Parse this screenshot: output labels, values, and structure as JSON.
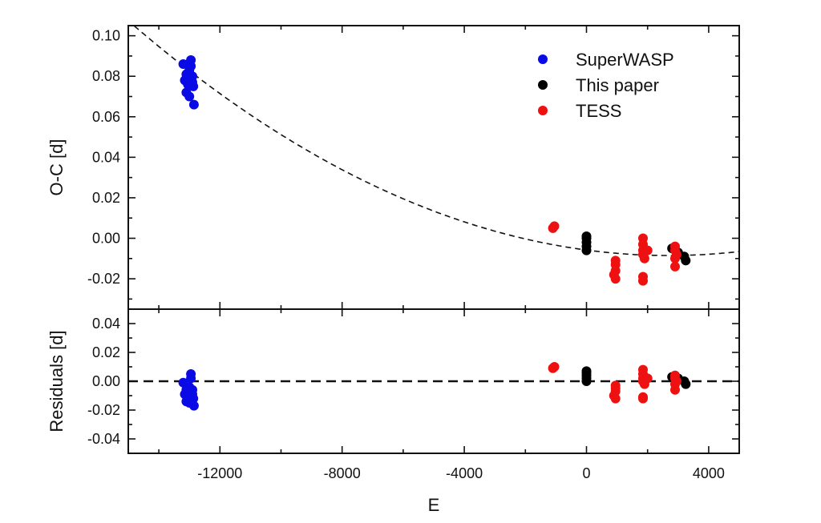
{
  "chart_data": {
    "type": "scatter",
    "xlabel": "E",
    "panels": [
      {
        "id": "top",
        "ylabel": "O-C [d]",
        "ylim": [
          -0.035,
          0.105
        ],
        "yticks": [
          -0.02,
          0.0,
          0.02,
          0.04,
          0.06,
          0.08,
          0.1
        ],
        "ytick_labels": [
          "-0.02",
          "0.00",
          "0.02",
          "0.04",
          "0.06",
          "0.08",
          "0.10"
        ]
      },
      {
        "id": "bottom",
        "ylabel": "Residuals [d]",
        "ylim": [
          -0.05,
          0.05
        ],
        "yticks": [
          -0.04,
          -0.02,
          0.0,
          0.02,
          0.04
        ],
        "ytick_labels": [
          "-0.04",
          "-0.02",
          "0.00",
          "0.02",
          "0.04"
        ]
      }
    ],
    "xlim": [
      -15000,
      5000
    ],
    "xticks": [
      -12000,
      -8000,
      -4000,
      0,
      4000
    ],
    "xtick_labels": [
      "-12000",
      "-8000",
      "-4000",
      "0",
      "4000"
    ],
    "legend": {
      "placement": "top-right"
    },
    "fit": {
      "type": "quadratic",
      "vertex_E": 2700,
      "vertex_OC": -0.0085,
      "curvature": 3.7e-10,
      "style": "dashed"
    },
    "series": [
      {
        "name": "SuperWASP",
        "color": "#0a0ae6",
        "x": [
          -13200,
          -13150,
          -13100,
          -13050,
          -13000,
          -12950,
          -12950,
          -12900,
          -12900,
          -12850,
          -13000,
          -13100,
          -12870
        ],
        "y": [
          0.086,
          0.078,
          0.072,
          0.076,
          0.083,
          0.088,
          0.085,
          0.08,
          0.077,
          0.066,
          0.07,
          0.081,
          0.075
        ],
        "res": [
          -0.001,
          -0.009,
          -0.014,
          -0.011,
          -0.004,
          0.005,
          0.002,
          -0.006,
          -0.009,
          -0.017,
          -0.015,
          -0.006,
          -0.012
        ]
      },
      {
        "name": "This paper",
        "color": "#000000",
        "x": [
          0,
          0,
          0,
          0,
          0,
          2800,
          3000,
          3200,
          3250
        ],
        "y": [
          -0.006,
          -0.004,
          -0.002,
          0.0,
          0.001,
          -0.005,
          -0.007,
          -0.009,
          -0.011
        ],
        "res": [
          0.0,
          0.002,
          0.004,
          0.006,
          0.007,
          0.003,
          0.002,
          0.0,
          -0.002
        ]
      },
      {
        "name": "TESS",
        "color": "#ee1111",
        "x": [
          -1100,
          -1050,
          950,
          950,
          950,
          950,
          900,
          1850,
          1850,
          1850,
          1850,
          1900,
          1850,
          1850,
          2000,
          2900,
          2900,
          2950,
          2900,
          2900
        ],
        "y": [
          0.005,
          0.006,
          -0.011,
          -0.013,
          -0.016,
          -0.02,
          -0.018,
          0.0,
          -0.003,
          -0.006,
          -0.008,
          -0.01,
          -0.019,
          -0.021,
          -0.006,
          -0.004,
          -0.006,
          -0.008,
          -0.01,
          -0.014
        ],
        "res": [
          0.009,
          0.01,
          -0.003,
          -0.005,
          -0.007,
          -0.012,
          -0.01,
          0.008,
          0.005,
          0.002,
          0.0,
          -0.002,
          -0.011,
          -0.012,
          0.002,
          0.004,
          0.002,
          0.0,
          -0.002,
          -0.006
        ]
      }
    ]
  }
}
